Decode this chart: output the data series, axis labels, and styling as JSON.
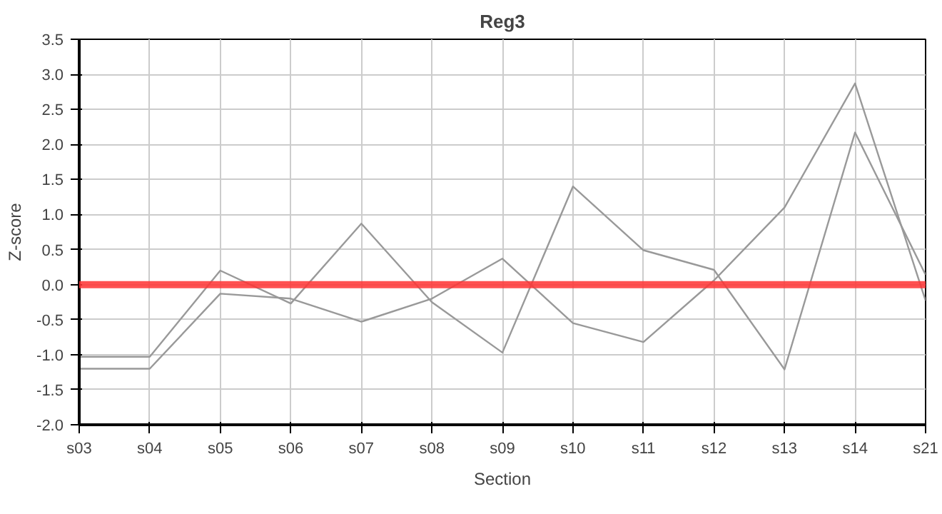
{
  "chart_data": {
    "type": "line",
    "title": "Reg3",
    "xlabel": "Section",
    "ylabel": "Z-score",
    "categories": [
      "s03",
      "s04",
      "s05",
      "s06",
      "s07",
      "s08",
      "s09",
      "s10",
      "s11",
      "s12",
      "s13",
      "s14",
      "s21"
    ],
    "series": [
      {
        "color": "#999999",
        "values": [
          -1.03,
          -1.03,
          0.2,
          -0.27,
          0.87,
          -0.25,
          -0.97,
          1.4,
          0.49,
          0.21,
          -1.21,
          2.17,
          0.14
        ]
      },
      {
        "color": "#999999",
        "values": [
          -1.2,
          -1.2,
          -0.13,
          -0.2,
          -0.53,
          -0.2,
          0.37,
          -0.55,
          -0.82,
          0.06,
          1.1,
          2.87,
          -0.23
        ]
      }
    ],
    "ylim": [
      -2.0,
      3.5
    ],
    "yticks": [
      {
        "value": -2,
        "label": "-2.0"
      },
      {
        "value": -1.5,
        "label": "-1.5"
      },
      {
        "value": -1,
        "label": "-1.0"
      },
      {
        "value": -0.5,
        "label": "-0.5"
      },
      {
        "value": 0,
        "label": "0.0"
      },
      {
        "value": 0.5,
        "label": "0.5"
      },
      {
        "value": 1,
        "label": "1.0"
      },
      {
        "value": 1.5,
        "label": "1.5"
      },
      {
        "value": 2,
        "label": "2.0"
      },
      {
        "value": 2.5,
        "label": "2.5"
      },
      {
        "value": 3,
        "label": "3.0"
      },
      {
        "value": 3.5,
        "label": "3.5"
      }
    ],
    "ref_lines": [
      {
        "axis": "y",
        "value": 0,
        "color": "#ff3333"
      }
    ],
    "grid": true,
    "marker": "none",
    "line_style": "solid"
  }
}
